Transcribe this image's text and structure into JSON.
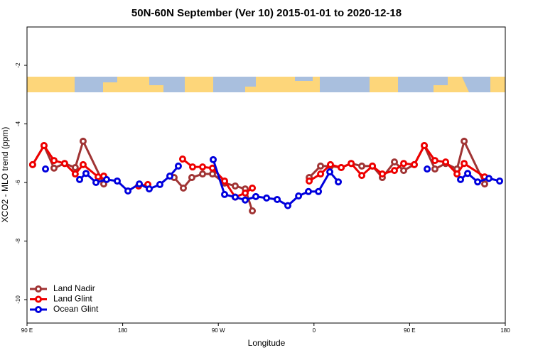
{
  "chart_data": {
    "type": "line",
    "title": "50N-60N September (Ver 10)   2015-01-01 to 2020-12-18",
    "xlabel": "Longitude",
    "ylabel": "XCO2 - MLO trend (ppm)",
    "xlim": [
      90,
      540
    ],
    "ylim": [
      -10.8,
      -0.69
    ],
    "xticks": [
      {
        "value": 90,
        "label": "90 E"
      },
      180,
      {
        "value": 270,
        "label": "90 W"
      },
      {
        "value": 360,
        "label": "0"
      },
      {
        "value": 450,
        "label": "90 E"
      },
      {
        "value": 540,
        "label": "180"
      }
    ],
    "yticks": [
      -10,
      -8,
      -6,
      -4,
      -2
    ],
    "legend": "bottom-left",
    "series": [
      {
        "name": "Land Nadir",
        "color": "#a03434",
        "x": [
          95.3,
          106.0,
          115.4,
          125.4,
          135.4,
          142.8,
          162.2,
          null,
          228.4,
          237.1,
          245.1,
          255.2,
          264.5,
          275.9,
          285.9,
          295.3,
          302.0,
          null,
          355.5,
          366.2,
          375.5,
          385.6,
          395.0,
          405.0,
          415.0,
          424.3,
          435.7,
          444.4,
          454.4,
          463.8,
          473.8,
          483.9,
          494.6,
          501.3,
          520.6
        ],
        "values": [
          -5.39,
          -4.74,
          -5.51,
          -5.35,
          -5.49,
          -4.59,
          -6.05,
          null,
          -5.83,
          -6.19,
          -5.83,
          -5.71,
          -5.71,
          -6.02,
          -6.12,
          -6.22,
          -6.97,
          null,
          -5.83,
          -5.44,
          -5.44,
          -5.49,
          -5.35,
          -5.44,
          -5.44,
          -5.83,
          -5.3,
          -5.59,
          -5.39,
          -4.74,
          -5.54,
          -5.35,
          -5.54,
          -4.59,
          -6.05
        ]
      },
      {
        "name": "Land Glint",
        "color": "#ee0000",
        "x": [
          95.3,
          106.0,
          115.4,
          125.4,
          135.4,
          142.8,
          156.9,
          162.2,
          null,
          195.0,
          203.7,
          null,
          236.4,
          245.8,
          255.2,
          264.5,
          275.9,
          285.9,
          295.3,
          302.0,
          null,
          355.5,
          366.2,
          375.5,
          385.6,
          395.0,
          405.0,
          415.0,
          424.3,
          435.7,
          444.4,
          454.4,
          463.8,
          473.8,
          483.9,
          494.6,
          501.3,
          520.6
        ],
        "values": [
          -5.39,
          -4.74,
          -5.25,
          -5.35,
          -5.71,
          -5.39,
          -5.81,
          -5.78,
          null,
          -6.12,
          -6.07,
          null,
          -5.2,
          -5.47,
          -5.47,
          -5.51,
          -5.95,
          -6.5,
          -6.36,
          -6.19,
          null,
          -5.95,
          -5.71,
          -5.39,
          -5.49,
          -5.35,
          -5.76,
          -5.44,
          -5.71,
          -5.59,
          -5.35,
          -5.39,
          -4.74,
          -5.25,
          -5.3,
          -5.71,
          -5.35,
          -5.81
        ]
      },
      {
        "name": "Ocean Glint",
        "color": "#0000dd",
        "x": [
          107.4,
          null,
          139.5,
          145.5,
          154.9,
          164.9,
          174.9,
          185.0,
          195.7,
          205.0,
          215.0,
          224.4,
          232.4,
          null,
          265.2,
          275.9,
          285.9,
          295.3,
          305.3,
          315.4,
          325.4,
          335.4,
          345.5,
          354.8,
          364.2,
          374.9,
          382.9,
          null,
          466.5,
          null,
          497.9,
          504.6,
          514.0,
          524.6,
          534.7
        ],
        "values": [
          -5.54,
          null,
          -5.9,
          -5.69,
          -6.0,
          -5.9,
          -5.95,
          -6.29,
          -6.05,
          -6.22,
          -6.07,
          -5.78,
          -5.44,
          null,
          -5.22,
          -6.41,
          -6.5,
          -6.6,
          -6.48,
          -6.53,
          -6.58,
          -6.79,
          -6.46,
          -6.31,
          -6.31,
          -5.64,
          -5.98,
          null,
          -5.54,
          null,
          -5.9,
          -5.69,
          -5.98,
          -5.86,
          -5.95
        ]
      }
    ]
  }
}
